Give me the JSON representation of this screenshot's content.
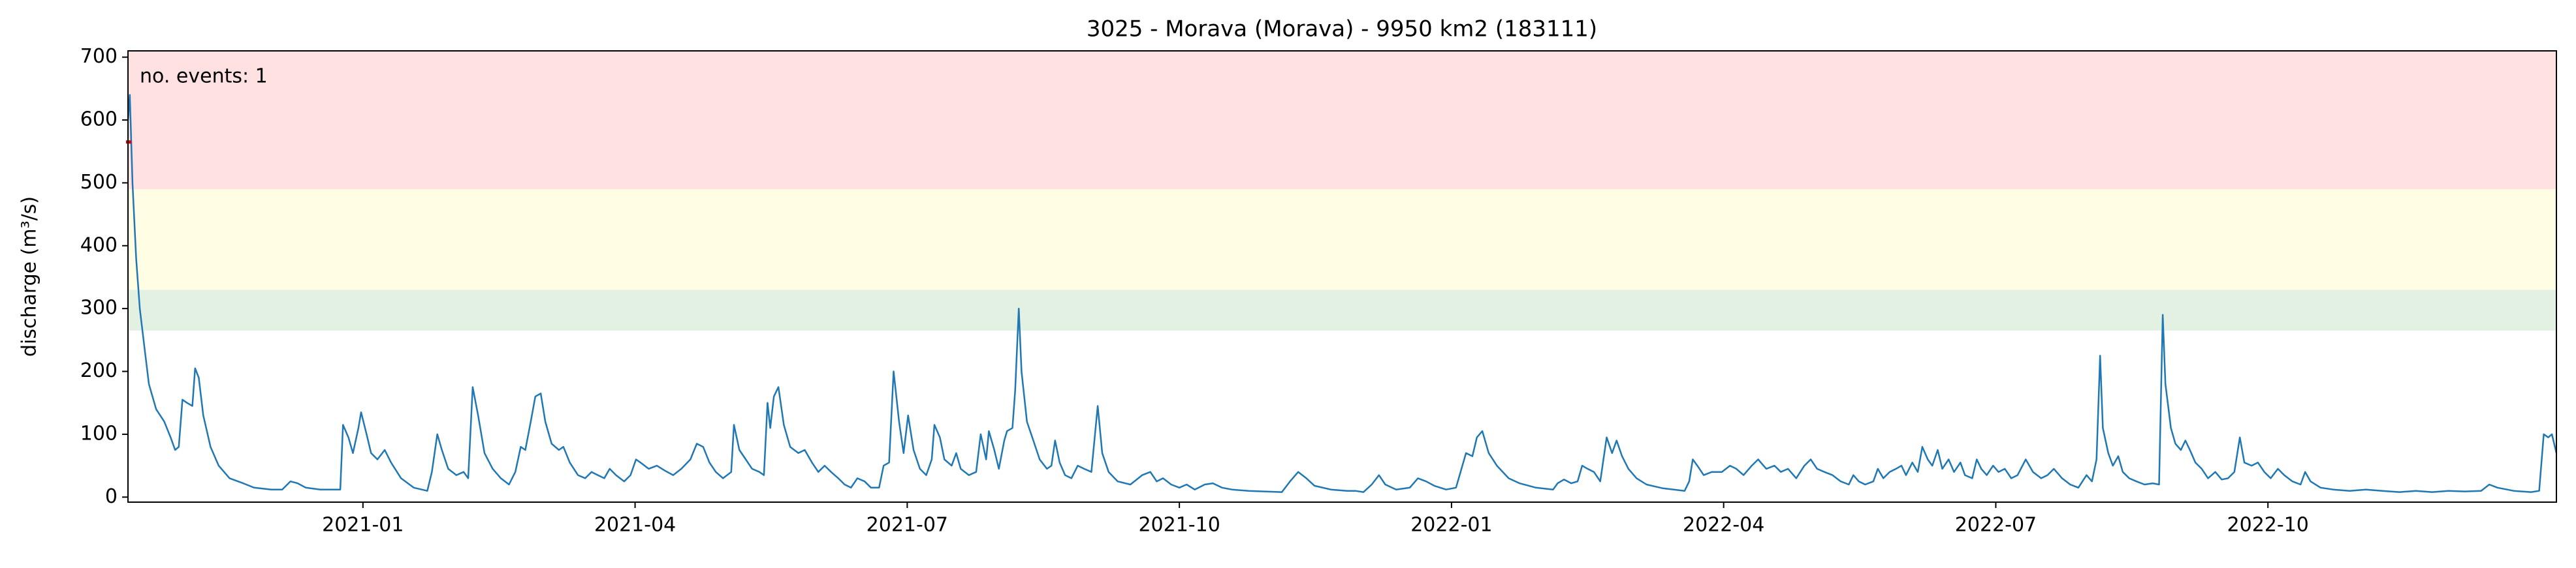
{
  "chart_data": {
    "type": "line",
    "title": "3025 - Morava (Morava) - 9950 km2 (183111)",
    "y_label": "discharge (m³/s)",
    "annotation": "no. events: 1",
    "annotation_color": "#e00000",
    "xlim": [
      -2.59,
      24.18
    ],
    "xticks": [
      {
        "value": 0,
        "label": "2021-01"
      },
      {
        "value": 3,
        "label": "2021-04"
      },
      {
        "value": 6,
        "label": "2021-07"
      },
      {
        "value": 9,
        "label": "2021-10"
      },
      {
        "value": 12,
        "label": "2022-01"
      },
      {
        "value": 15,
        "label": "2022-04"
      },
      {
        "value": 18,
        "label": "2022-07"
      },
      {
        "value": 21,
        "label": "2022-10"
      }
    ],
    "ylim": [
      -8,
      710
    ],
    "yticks": [
      0,
      100,
      200,
      300,
      400,
      500,
      600,
      700
    ],
    "bands": [
      {
        "from": 265,
        "to": 330,
        "color": "#e3f1e3"
      },
      {
        "from": 330,
        "to": 490,
        "color": "#fffde3"
      },
      {
        "from": 490,
        "color": "#ffe1e1"
      }
    ],
    "event": {
      "x": -2.59,
      "value": 565,
      "color": "#e00000"
    },
    "series": [
      {
        "name": "discharge",
        "color": "#1f77b4",
        "x": [
          -2.59,
          -2.57,
          -2.54,
          -2.5,
          -2.46,
          -2.41,
          -2.36,
          -2.28,
          -2.19,
          -2.12,
          -2.07,
          -2.03,
          -1.99,
          -1.94,
          -1.88,
          -1.85,
          -1.81,
          -1.76,
          -1.68,
          -1.59,
          -1.47,
          -1.32,
          -1.2,
          -1.01,
          -0.89,
          -0.8,
          -0.72,
          -0.63,
          -0.47,
          -0.25,
          -0.22,
          -0.16,
          -0.11,
          -0.05,
          -0.02,
          0.04,
          0.09,
          0.16,
          0.24,
          0.31,
          0.42,
          0.56,
          0.71,
          0.76,
          0.82,
          0.87,
          0.94,
          1.03,
          1.11,
          1.16,
          1.21,
          1.27,
          1.34,
          1.43,
          1.52,
          1.61,
          1.68,
          1.74,
          1.79,
          1.85,
          1.9,
          1.96,
          2.01,
          2.08,
          2.16,
          2.21,
          2.28,
          2.37,
          2.45,
          2.52,
          2.59,
          2.66,
          2.72,
          2.79,
          2.88,
          2.95,
          3.01,
          3.06,
          3.15,
          3.24,
          3.33,
          3.42,
          3.51,
          3.61,
          3.68,
          3.75,
          3.82,
          3.89,
          3.97,
          4.06,
          4.09,
          4.15,
          4.22,
          4.29,
          4.37,
          4.42,
          4.46,
          4.49,
          4.53,
          4.58,
          4.64,
          4.71,
          4.8,
          4.87,
          4.95,
          5.02,
          5.09,
          5.16,
          5.24,
          5.31,
          5.38,
          5.45,
          5.53,
          5.6,
          5.69,
          5.74,
          5.8,
          5.85,
          5.91,
          5.96,
          6.01,
          6.07,
          6.14,
          6.21,
          6.27,
          6.3,
          6.36,
          6.41,
          6.49,
          6.54,
          6.59,
          6.68,
          6.76,
          6.81,
          6.87,
          6.9,
          6.96,
          7.01,
          7.07,
          7.1,
          7.16,
          7.19,
          7.23,
          7.26,
          7.32,
          7.39,
          7.46,
          7.54,
          7.59,
          7.63,
          7.68,
          7.74,
          7.81,
          7.88,
          7.95,
          8.03,
          8.1,
          8.15,
          8.22,
          8.32,
          8.46,
          8.59,
          8.68,
          8.75,
          8.82,
          8.91,
          9.0,
          9.08,
          9.17,
          9.28,
          9.37,
          9.47,
          9.58,
          9.76,
          10.13,
          10.22,
          10.31,
          10.4,
          10.49,
          10.67,
          10.85,
          10.94,
          11.03,
          11.12,
          11.2,
          11.27,
          11.39,
          11.54,
          11.63,
          11.72,
          11.81,
          11.94,
          12.05,
          12.16,
          12.23,
          12.28,
          12.34,
          12.41,
          12.5,
          12.63,
          12.75,
          12.93,
          13.12,
          13.17,
          13.24,
          13.32,
          13.39,
          13.44,
          13.5,
          13.57,
          13.64,
          13.71,
          13.77,
          13.82,
          13.88,
          13.95,
          14.04,
          14.15,
          14.33,
          14.57,
          14.62,
          14.66,
          14.71,
          14.78,
          14.87,
          14.98,
          15.07,
          15.14,
          15.22,
          15.31,
          15.38,
          15.47,
          15.56,
          15.63,
          15.71,
          15.8,
          15.89,
          15.96,
          16.03,
          16.11,
          16.2,
          16.29,
          16.38,
          16.43,
          16.49,
          16.56,
          16.65,
          16.7,
          16.76,
          16.83,
          16.9,
          16.96,
          17.01,
          17.08,
          17.14,
          17.19,
          17.25,
          17.3,
          17.36,
          17.41,
          17.48,
          17.54,
          17.61,
          17.66,
          17.74,
          17.79,
          17.84,
          17.9,
          17.97,
          18.03,
          18.1,
          18.17,
          18.24,
          18.33,
          18.41,
          18.5,
          18.57,
          18.64,
          18.73,
          18.82,
          18.91,
          19.0,
          19.06,
          19.11,
          19.15,
          19.18,
          19.24,
          19.29,
          19.35,
          19.4,
          19.47,
          19.55,
          19.64,
          19.73,
          19.8,
          19.84,
          19.87,
          19.93,
          19.98,
          20.04,
          20.09,
          20.14,
          20.2,
          20.27,
          20.34,
          20.42,
          20.49,
          20.56,
          20.63,
          20.69,
          20.74,
          20.82,
          20.89,
          20.96,
          21.03,
          21.11,
          21.18,
          21.27,
          21.36,
          21.41,
          21.47,
          21.58,
          21.72,
          21.9,
          22.08,
          22.26,
          22.45,
          22.63,
          22.81,
          22.99,
          23.17,
          23.35,
          23.44,
          23.53,
          23.71,
          23.9,
          23.99,
          24.04,
          24.09,
          24.13,
          24.18
        ],
        "values": [
          600,
          640,
          500,
          380,
          300,
          240,
          180,
          140,
          120,
          95,
          75,
          80,
          155,
          150,
          145,
          205,
          190,
          130,
          80,
          50,
          30,
          22,
          15,
          12,
          12,
          25,
          22,
          15,
          12,
          12,
          115,
          95,
          70,
          110,
          135,
          100,
          70,
          60,
          75,
          55,
          30,
          15,
          10,
          40,
          100,
          75,
          45,
          35,
          40,
          30,
          175,
          130,
          70,
          45,
          30,
          20,
          40,
          80,
          75,
          120,
          160,
          165,
          120,
          85,
          75,
          80,
          55,
          35,
          30,
          40,
          35,
          30,
          45,
          35,
          25,
          35,
          60,
          55,
          45,
          50,
          42,
          35,
          45,
          60,
          85,
          80,
          55,
          40,
          30,
          40,
          115,
          75,
          60,
          45,
          40,
          35,
          150,
          110,
          160,
          175,
          115,
          80,
          70,
          75,
          55,
          40,
          50,
          40,
          30,
          20,
          15,
          30,
          25,
          15,
          15,
          50,
          55,
          200,
          120,
          70,
          130,
          75,
          45,
          35,
          60,
          115,
          95,
          60,
          50,
          70,
          45,
          35,
          40,
          100,
          60,
          105,
          75,
          45,
          90,
          105,
          110,
          170,
          300,
          200,
          120,
          90,
          60,
          45,
          50,
          90,
          55,
          35,
          30,
          50,
          45,
          40,
          145,
          70,
          40,
          25,
          20,
          35,
          40,
          25,
          30,
          20,
          15,
          20,
          12,
          20,
          22,
          15,
          12,
          10,
          8,
          25,
          40,
          30,
          18,
          12,
          10,
          10,
          8,
          20,
          35,
          20,
          12,
          15,
          30,
          25,
          18,
          12,
          15,
          70,
          65,
          95,
          105,
          70,
          50,
          30,
          22,
          15,
          12,
          22,
          28,
          22,
          25,
          50,
          45,
          40,
          25,
          95,
          70,
          90,
          65,
          45,
          30,
          20,
          14,
          10,
          25,
          60,
          50,
          35,
          40,
          40,
          50,
          45,
          35,
          50,
          60,
          45,
          50,
          40,
          45,
          30,
          50,
          60,
          45,
          40,
          35,
          25,
          20,
          35,
          25,
          20,
          25,
          45,
          30,
          40,
          45,
          50,
          35,
          55,
          40,
          80,
          60,
          50,
          75,
          45,
          60,
          40,
          55,
          35,
          30,
          60,
          45,
          35,
          50,
          40,
          45,
          30,
          35,
          60,
          40,
          30,
          35,
          45,
          30,
          20,
          15,
          35,
          25,
          60,
          225,
          110,
          70,
          50,
          65,
          40,
          30,
          25,
          20,
          22,
          20,
          290,
          180,
          110,
          85,
          75,
          90,
          75,
          55,
          45,
          30,
          40,
          28,
          30,
          40,
          95,
          55,
          50,
          55,
          40,
          30,
          45,
          35,
          25,
          20,
          40,
          25,
          15,
          12,
          10,
          12,
          10,
          8,
          10,
          8,
          10,
          9,
          10,
          20,
          15,
          10,
          8,
          10,
          100,
          95,
          100,
          70
        ]
      }
    ]
  }
}
